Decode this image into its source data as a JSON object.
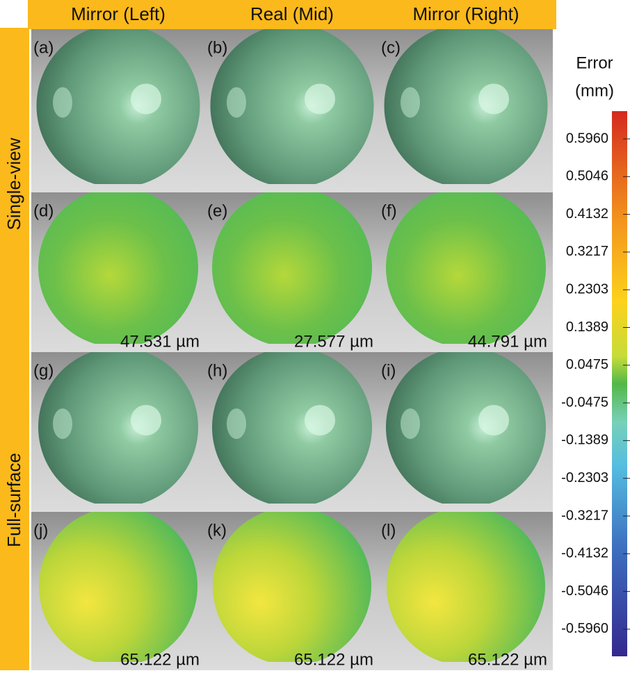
{
  "columns": [
    "Mirror (Left)",
    "Real (Mid)",
    "Mirror (Right)"
  ],
  "rows": [
    "Single-view",
    "Full-surface"
  ],
  "panels": [
    {
      "label": "(a)"
    },
    {
      "label": "(b)"
    },
    {
      "label": "(c)"
    },
    {
      "label": "(d)",
      "error": "47.531 µm"
    },
    {
      "label": "(e)",
      "error": "27.577 µm"
    },
    {
      "label": "(f)",
      "error": "44.791 µm"
    },
    {
      "label": "(g)"
    },
    {
      "label": "(h)"
    },
    {
      "label": "(i)"
    },
    {
      "label": "(j)",
      "error": "65.122 µm"
    },
    {
      "label": "(k)",
      "error": "65.122 µm"
    },
    {
      "label": "(l)",
      "error": "65.122 µm"
    }
  ],
  "colorbar": {
    "title": [
      "Error",
      "(mm)"
    ],
    "ticks": [
      "0.5960",
      "0.5046",
      "0.4132",
      "0.3217",
      "0.2303",
      "0.1389",
      "0.0475",
      "-0.0475",
      "-0.1389",
      "-0.2303",
      "-0.3217",
      "-0.4132",
      "-0.5046",
      "-0.5960"
    ]
  }
}
